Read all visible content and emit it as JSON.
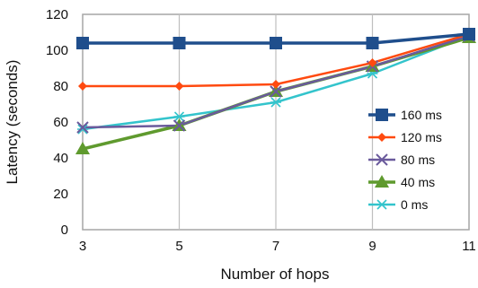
{
  "chart_data": {
    "type": "line",
    "xlabel": "Number of hops",
    "ylabel": "Latency (seconds)",
    "x": [
      3,
      5,
      7,
      9,
      11
    ],
    "xlim": [
      3,
      11
    ],
    "ylim": [
      0,
      120
    ],
    "x_ticks": [
      3,
      5,
      7,
      9,
      11
    ],
    "y_ticks": [
      0,
      20,
      40,
      60,
      80,
      100,
      120
    ],
    "grid": "vertical",
    "legend_position": "right",
    "series": [
      {
        "name": "160 ms",
        "values": [
          104,
          104,
          104,
          104,
          109
        ],
        "color": "#1f4e8c",
        "marker": "square"
      },
      {
        "name": "120 ms",
        "values": [
          80,
          80,
          81,
          93,
          109
        ],
        "color": "#ff4a10",
        "marker": "diamond"
      },
      {
        "name": "80 ms",
        "values": [
          57,
          58,
          77,
          91,
          108
        ],
        "color": "#6a5a9c",
        "marker": "x"
      },
      {
        "name": "40 ms",
        "values": [
          45,
          58,
          77,
          91,
          107
        ],
        "color": "#5f9a2e",
        "marker": "triangle"
      },
      {
        "name": "0 ms",
        "values": [
          56,
          63,
          71,
          87,
          108
        ],
        "color": "#33c4cc",
        "marker": "star"
      }
    ]
  }
}
